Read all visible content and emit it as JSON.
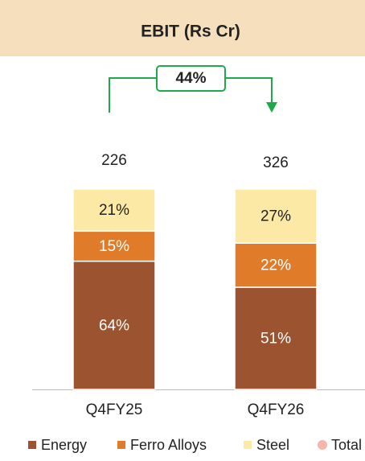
{
  "chart_data": {
    "type": "stacked_bar_100",
    "title": "EBIT (Rs Cr)",
    "annotation": "44%",
    "categories": [
      "Q4FY25",
      "Q4FY26"
    ],
    "series": [
      {
        "name": "Energy",
        "color": "#9c5430",
        "label_color": "#ffffff",
        "values": [
          64,
          51
        ],
        "value_labels": [
          "64%",
          "51%"
        ]
      },
      {
        "name": "Ferro Alloys",
        "color": "#e07b2a",
        "label_color": "#ffffff",
        "values": [
          15,
          22
        ],
        "value_labels": [
          "15%",
          "22%"
        ]
      },
      {
        "name": "Steel",
        "color": "#fde9a6",
        "label_color": "#222222",
        "values": [
          21,
          27
        ],
        "value_labels": [
          "21%",
          "27%"
        ]
      }
    ],
    "total": {
      "name": "Total",
      "color": "#f4b6a8",
      "values": [
        226,
        326
      ]
    }
  }
}
